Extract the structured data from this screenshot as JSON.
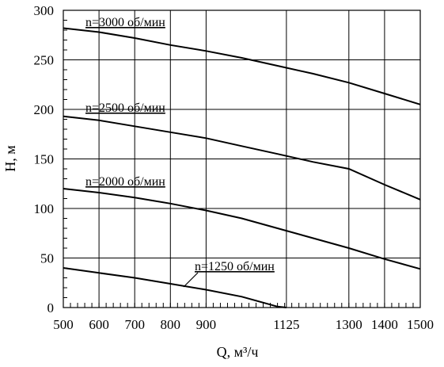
{
  "chart_data": {
    "type": "line",
    "xlabel": "Q, м³/ч",
    "ylabel": "H, м",
    "xlim": [
      500,
      1500
    ],
    "ylim": [
      0,
      300
    ],
    "x_ticks": [
      500,
      600,
      700,
      800,
      900,
      1125,
      1300,
      1400,
      1500
    ],
    "x_tick_labels": [
      "500",
      "600",
      "700",
      "800",
      "900",
      "1125",
      "1300",
      "1400",
      "1500"
    ],
    "y_ticks": [
      0,
      50,
      100,
      150,
      200,
      250,
      300
    ],
    "y_tick_labels": [
      "0",
      "50",
      "100",
      "150",
      "200",
      "250",
      "300"
    ],
    "grid": true,
    "series": [
      {
        "name": "n=3000 об/мин",
        "x": [
          500,
          600,
          700,
          800,
          900,
          1000,
          1100,
          1200,
          1300,
          1400,
          1500
        ],
        "y": [
          282,
          278,
          272,
          265,
          259,
          252,
          244,
          236,
          227,
          216,
          205
        ]
      },
      {
        "name": "n=2500 об/мин",
        "x": [
          500,
          600,
          700,
          800,
          900,
          1000,
          1100,
          1200,
          1300,
          1400,
          1500
        ],
        "y": [
          193,
          189,
          183,
          177,
          171,
          163,
          155,
          147,
          140,
          124,
          109
        ]
      },
      {
        "name": "n=2000 об/мин",
        "x": [
          500,
          600,
          700,
          800,
          900,
          1000,
          1100,
          1200,
          1300,
          1400,
          1500
        ],
        "y": [
          120,
          116,
          111,
          105,
          98,
          90,
          80,
          70,
          60,
          49,
          39
        ]
      },
      {
        "name": "n=1250 об/мин",
        "x": [
          500,
          600,
          700,
          800,
          900,
          1000,
          1100,
          1125
        ],
        "y": [
          40,
          35,
          30,
          24,
          18,
          11,
          1,
          0
        ]
      }
    ]
  }
}
